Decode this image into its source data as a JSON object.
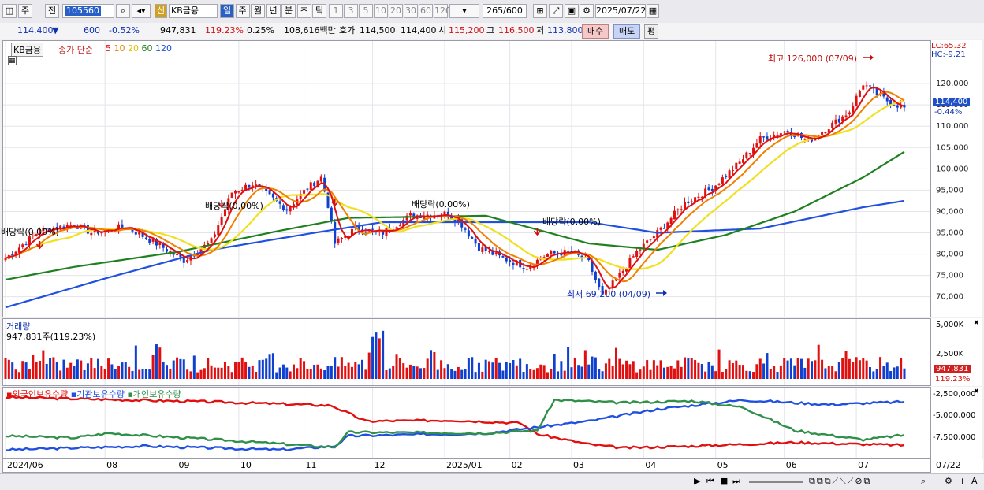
{
  "toolbar": {
    "period_label": "주",
    "prev_label": "전",
    "code_value": "105560",
    "badge": "신",
    "stock_name": "KB금융",
    "timeframes": [
      "일",
      "주",
      "월",
      "년",
      "분",
      "초",
      "틱"
    ],
    "intervals": [
      "1",
      "3",
      "5",
      "10",
      "20",
      "30",
      "60",
      "120"
    ],
    "count": "265",
    "count_total": "/600",
    "date": "2025/07/22"
  },
  "quote": {
    "price": "114,400",
    "change": "600",
    "change_pct": "-0.52%",
    "volume": "947,831",
    "volume_ratio": "119.23%",
    "turnover": "0.25%",
    "amount": "108,616백만",
    "hoga_label": "호가",
    "ask": "114,500",
    "bid": "114,400",
    "open_label": "시",
    "open": "115,200",
    "high_label": "고",
    "high": "116,500",
    "low_label": "저",
    "low": "113,800",
    "buy_label": "매수",
    "sell_label": "매도",
    "eval_label": "평"
  },
  "price_panel": {
    "stock_tag": "KB금융",
    "indicator_label": "종가 단순",
    "ma_periods": [
      "5",
      "10",
      "20",
      "60",
      "120"
    ],
    "ma_colors": [
      "#e01010",
      "#f08000",
      "#ffff00",
      "#208020",
      "#2050e0"
    ],
    "lc": "LC:65.32",
    "hc": "HC:-9.21",
    "current_price": "114,400",
    "current_pct": "-0.44%",
    "high_annot": "최고 126,000 (07/09)",
    "low_annot": "최저 69,200 (04/09)",
    "dividends": [
      "배당락(0,00%)",
      "배당락(0,00%)",
      "배당락(0.00%)",
      "배당락(0.00%)"
    ]
  },
  "volume_panel": {
    "title": "거래량",
    "subtitle": "947,831주(119.23%)",
    "axis_ticks": [
      "5,000K",
      "2,500K"
    ],
    "current": "947,831",
    "current_pct": "119.23%"
  },
  "holding_panel": {
    "legend": [
      "외국인보유수량",
      "기관보유수량",
      "개인보유수량"
    ],
    "colors": [
      "#e01010",
      "#2050e0",
      "#30904a"
    ],
    "axis_ticks": [
      "-2,500,000",
      "-5,000,000",
      "-7,500,000"
    ]
  },
  "x_axis": {
    "labels": [
      "2024/06",
      "08",
      "09",
      "10",
      "11",
      "12",
      "2025/01",
      "02",
      "03",
      "04",
      "05",
      "06",
      "07"
    ],
    "end_label": "07/22"
  },
  "chart_data": {
    "type": "candlestick",
    "y_ticks": [
      70000,
      75000,
      80000,
      85000,
      90000,
      95000,
      100000,
      105000,
      110000,
      115000,
      120000
    ],
    "ylim": [
      65320,
      130000
    ],
    "x_range": [
      "2024/06",
      "2025/07/22"
    ],
    "price_keypoints": [
      [
        0,
        79000
      ],
      [
        10,
        85500
      ],
      [
        20,
        87000
      ],
      [
        25,
        85000
      ],
      [
        35,
        86500
      ],
      [
        45,
        82000
      ],
      [
        52,
        78500
      ],
      [
        60,
        83000
      ],
      [
        66,
        94500
      ],
      [
        72,
        96500
      ],
      [
        82,
        90500
      ],
      [
        88,
        95500
      ],
      [
        92,
        98000
      ],
      [
        94,
        91500
      ],
      [
        96,
        82500
      ],
      [
        102,
        86000
      ],
      [
        110,
        85000
      ],
      [
        118,
        89000
      ],
      [
        128,
        89500
      ],
      [
        132,
        88000
      ],
      [
        138,
        81500
      ],
      [
        145,
        79000
      ],
      [
        152,
        77000
      ],
      [
        158,
        80000
      ],
      [
        165,
        80500
      ],
      [
        170,
        78000
      ],
      [
        174,
        70000
      ],
      [
        178,
        74000
      ],
      [
        184,
        80500
      ],
      [
        190,
        85000
      ],
      [
        198,
        92000
      ],
      [
        206,
        95500
      ],
      [
        214,
        101500
      ],
      [
        220,
        107000
      ],
      [
        228,
        109000
      ],
      [
        234,
        106500
      ],
      [
        242,
        111000
      ],
      [
        246,
        113500
      ],
      [
        250,
        120000
      ],
      [
        254,
        117500
      ],
      [
        258,
        115500
      ],
      [
        262,
        114400
      ]
    ],
    "ma120": [
      [
        0,
        67500
      ],
      [
        30,
        74500
      ],
      [
        60,
        81000
      ],
      [
        90,
        85000
      ],
      [
        110,
        87500
      ],
      [
        170,
        87500
      ],
      [
        190,
        85000
      ],
      [
        220,
        86000
      ],
      [
        250,
        91000
      ],
      [
        262,
        92500
      ]
    ],
    "ma60": [
      [
        0,
        74000
      ],
      [
        20,
        77000
      ],
      [
        50,
        80500
      ],
      [
        80,
        85500
      ],
      [
        100,
        88500
      ],
      [
        140,
        89000
      ],
      [
        170,
        82500
      ],
      [
        190,
        81000
      ],
      [
        210,
        84500
      ],
      [
        230,
        90000
      ],
      [
        250,
        98000
      ],
      [
        262,
        104000
      ]
    ],
    "volume_max": 5000000,
    "holdings_ylim": [
      -9000000,
      -2000000
    ],
    "foreign": [
      [
        0,
        -2700000
      ],
      [
        60,
        -3200000
      ],
      [
        95,
        -3600000
      ],
      [
        105,
        -5300000
      ],
      [
        130,
        -5200000
      ],
      [
        150,
        -5500000
      ],
      [
        155,
        -6700000
      ],
      [
        170,
        -7800000
      ],
      [
        180,
        -8200000
      ],
      [
        200,
        -8000000
      ],
      [
        230,
        -7600000
      ],
      [
        250,
        -7800000
      ],
      [
        262,
        -7900000
      ]
    ],
    "institution": [
      [
        0,
        -8400000
      ],
      [
        40,
        -8000000
      ],
      [
        80,
        -8400000
      ],
      [
        96,
        -8000000
      ],
      [
        100,
        -6900000
      ],
      [
        140,
        -6600000
      ],
      [
        170,
        -5300000
      ],
      [
        190,
        -4000000
      ],
      [
        215,
        -3000000
      ],
      [
        240,
        -3500000
      ],
      [
        262,
        -3200000
      ]
    ],
    "individual": [
      [
        0,
        -6900000
      ],
      [
        20,
        -7100000
      ],
      [
        30,
        -6600000
      ],
      [
        70,
        -7500000
      ],
      [
        90,
        -8000000
      ],
      [
        96,
        -8100000
      ],
      [
        100,
        -6500000
      ],
      [
        140,
        -6600000
      ],
      [
        155,
        -6300000
      ],
      [
        160,
        -3000000
      ],
      [
        180,
        -3300000
      ],
      [
        200,
        -3100000
      ],
      [
        215,
        -3800000
      ],
      [
        230,
        -6300000
      ],
      [
        250,
        -7300000
      ],
      [
        262,
        -6800000
      ]
    ]
  }
}
